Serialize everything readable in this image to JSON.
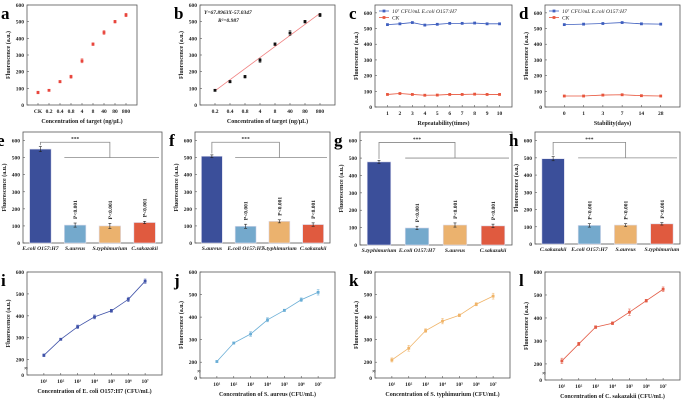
{
  "chart_data": [
    {
      "panel": "a",
      "type": "scatter",
      "color": "#e8453c",
      "xlabel": "Concentration of target (ng/μL)",
      "ylabel": "Fluorescence (a.u.)",
      "ylim": [
        0,
        600
      ],
      "yticks": [
        0,
        100,
        200,
        300,
        400,
        500,
        600
      ],
      "categories": [
        "CK",
        "0.2",
        "0.4",
        "0.8",
        "4",
        "8",
        "40",
        "80",
        "800"
      ],
      "series": [
        {
          "values": [
            75,
            88,
            140,
            170,
            265,
            365,
            435,
            500,
            540
          ],
          "errors": [
            8,
            5,
            7,
            9,
            12,
            8,
            12,
            8,
            10
          ]
        }
      ]
    },
    {
      "panel": "b",
      "type": "scatter",
      "color": "#111111",
      "fit_color": "#f08080",
      "xlabel": "Concentration of target (ng/μL)",
      "ylabel": "Fluorescence (a.u.)",
      "ylim": [
        0,
        600
      ],
      "yticks": [
        0,
        100,
        200,
        300,
        400,
        500,
        600
      ],
      "categories": [
        "0.2",
        "0.4",
        "0.8",
        "4",
        "8",
        "40",
        "80",
        "800"
      ],
      "equation": "Y=67.8963X-57.0347",
      "r2": "R²=0.987",
      "fit": [
        85,
        550
      ],
      "series": [
        {
          "values": [
            88,
            140,
            170,
            268,
            365,
            432,
            500,
            540
          ],
          "errors": [
            5,
            7,
            8,
            12,
            8,
            14,
            8,
            10
          ]
        }
      ]
    },
    {
      "panel": "c",
      "type": "line",
      "xlabel": "Repeatability(times)",
      "ylabel": "Fluorescence (a.u.)",
      "ylim": [
        0,
        650
      ],
      "yticks": [
        0,
        100,
        200,
        300,
        400,
        500,
        600
      ],
      "categories": [
        "1",
        "2",
        "3",
        "4",
        "5",
        "6",
        "7",
        "8",
        "9",
        "10"
      ],
      "legend": "top-left",
      "series": [
        {
          "name": "10⁷ CFU/mL E.coli O157:H7",
          "color": "#3f5fbf",
          "values": [
            525,
            530,
            538,
            522,
            527,
            533,
            533,
            535,
            530,
            530
          ]
        },
        {
          "name": "CK",
          "color": "#e8553c",
          "values": [
            80,
            86,
            80,
            75,
            76,
            80,
            80,
            82,
            80,
            80
          ]
        }
      ]
    },
    {
      "panel": "d",
      "type": "line",
      "xlabel": "Stability(days)",
      "ylabel": "Fluorescence (a.u.)",
      "ylim": [
        0,
        650
      ],
      "yticks": [
        0,
        100,
        200,
        300,
        400,
        500,
        600
      ],
      "categories": [
        "0",
        "1",
        "3",
        "7",
        "14",
        "28"
      ],
      "legend": "top-left",
      "series": [
        {
          "name": "10⁷ CFU/mL E.coli O157:H7",
          "color": "#3f5fbf",
          "values": [
            525,
            528,
            532,
            538,
            530,
            528
          ]
        },
        {
          "name": "CK",
          "color": "#e8553c",
          "values": [
            70,
            70,
            76,
            78,
            72,
            70
          ]
        }
      ]
    },
    {
      "panel": "e",
      "type": "bar",
      "ylabel": "Fluorescence (a.u.)",
      "ylim": [
        0,
        650
      ],
      "yticks": [
        0,
        100,
        200,
        300,
        400,
        500,
        600
      ],
      "significance": "***",
      "categories": [
        "E.coli O157:H7",
        "S.aureus",
        "S.typhimurium",
        "C.sakazakii"
      ],
      "values": [
        550,
        105,
        100,
        120
      ],
      "errors": [
        15,
        12,
        15,
        7
      ],
      "p_labels": [
        "P<0.001",
        "P<0.001",
        "P<0.001"
      ],
      "colors": [
        "#3b4f9a",
        "#74a9cc",
        "#ebb26e",
        "#e05a3f"
      ]
    },
    {
      "panel": "f",
      "type": "bar",
      "ylabel": "Fluorescence (a.u.)",
      "ylim": [
        0,
        650
      ],
      "yticks": [
        0,
        100,
        200,
        300,
        400,
        500,
        600
      ],
      "significance": "***",
      "categories": [
        "S.aureus",
        "E.coli O157:H7",
        "S.typhimurium",
        "C.sakazakii"
      ],
      "values": [
        508,
        98,
        127,
        108
      ],
      "errors": [
        8,
        12,
        9,
        10
      ],
      "p_labels": [
        "P<0.001",
        "P<0.001",
        "P<0.001"
      ],
      "colors": [
        "#3b4f9a",
        "#74a9cc",
        "#ebb26e",
        "#e05a3f"
      ]
    },
    {
      "panel": "g",
      "type": "bar",
      "ylabel": "Fluorescence (a.u.)",
      "ylim": [
        0,
        650
      ],
      "yticks": [
        0,
        100,
        200,
        300,
        400,
        500,
        600
      ],
      "significance": "***",
      "categories": [
        "S.typhimurium",
        "E.coli O157:H7",
        "S.aureus",
        "C.sakazakii"
      ],
      "values": [
        478,
        98,
        115,
        110
      ],
      "errors": [
        9,
        10,
        12,
        10
      ],
      "p_labels": [
        "P<0.001",
        "P<0.001",
        "P<0.001"
      ],
      "colors": [
        "#3b4f9a",
        "#74a9cc",
        "#ebb26e",
        "#e05a3f"
      ]
    },
    {
      "panel": "h",
      "type": "bar",
      "ylabel": "Fluorescence (a.u.)",
      "ylim": [
        0,
        650
      ],
      "yticks": [
        0,
        100,
        200,
        300,
        400,
        500,
        600
      ],
      "significance": "***",
      "categories": [
        "C.sakazakii",
        "E.coli O157:H7",
        "S.aureus",
        "S.typhimurium"
      ],
      "values": [
        495,
        108,
        110,
        117
      ],
      "errors": [
        12,
        10,
        8,
        7
      ],
      "p_labels": [
        "P<0.001",
        "P<0.001",
        "P<0.001"
      ],
      "colors": [
        "#3b4f9a",
        "#74a9cc",
        "#ebb26e",
        "#e05a3f"
      ]
    },
    {
      "panel": "i",
      "type": "line",
      "color": "#3f52a8",
      "xlabel": "Concentration of E. coli O157:H7 (CFU/mL)",
      "ylabel": "Fluorescence (a.u.)",
      "ylim": [
        0,
        600
      ],
      "yticks": [
        0,
        200,
        300,
        400,
        500,
        600
      ],
      "axis_break": true,
      "categories": [
        "10¹",
        "10²",
        "10³",
        "10⁴",
        "10⁵",
        "10⁶",
        "10⁷"
      ],
      "series": [
        {
          "values": [
            220,
            293,
            350,
            395,
            423,
            475,
            558
          ],
          "errors": [
            6,
            4,
            8,
            9,
            7,
            10,
            10
          ]
        }
      ]
    },
    {
      "panel": "j",
      "type": "line",
      "color": "#6aaed6",
      "xlabel": "Concentration of S. aureus (CFU/mL)",
      "ylabel": "Fluorescence (a.u.)",
      "ylim": [
        0,
        600
      ],
      "yticks": [
        0,
        200,
        300,
        400,
        500,
        600
      ],
      "axis_break": true,
      "categories": [
        "10¹",
        "10²",
        "10³",
        "10⁴",
        "10⁵",
        "10⁶",
        "10⁷"
      ],
      "series": [
        {
          "values": [
            203,
            285,
            325,
            388,
            430,
            477,
            510
          ],
          "errors": [
            4,
            4,
            10,
            9,
            5,
            8,
            12
          ]
        }
      ]
    },
    {
      "panel": "k",
      "type": "line",
      "color": "#f0b468",
      "xlabel": "Concentration of S. typhimurium (CFU/mL)",
      "ylabel": "Fluorescence (a.u.)",
      "ylim": [
        0,
        600
      ],
      "yticks": [
        0,
        200,
        300,
        400,
        500,
        600
      ],
      "axis_break": true,
      "categories": [
        "10¹",
        "10²",
        "10³",
        "10⁴",
        "10⁵",
        "10⁶",
        "10⁷"
      ],
      "series": [
        {
          "values": [
            210,
            262,
            340,
            382,
            408,
            457,
            493
          ],
          "errors": [
            9,
            13,
            8,
            12,
            6,
            7,
            13
          ]
        }
      ]
    },
    {
      "panel": "l",
      "type": "line",
      "color": "#e35b45",
      "xlabel": "Concentration of C. sakazakii (CFU/mL)",
      "ylabel": "Fluorescence (a.u.)",
      "ylim": [
        0,
        600
      ],
      "yticks": [
        0,
        200,
        300,
        400,
        500,
        600
      ],
      "axis_break": true,
      "categories": [
        "10¹",
        "10²",
        "10³",
        "10⁴",
        "10⁵",
        "10⁶",
        "10⁷"
      ],
      "series": [
        {
          "values": [
            213,
            287,
            360,
            377,
            425,
            475,
            525
          ],
          "errors": [
            12,
            7,
            6,
            6,
            14,
            6,
            10
          ]
        }
      ]
    }
  ]
}
